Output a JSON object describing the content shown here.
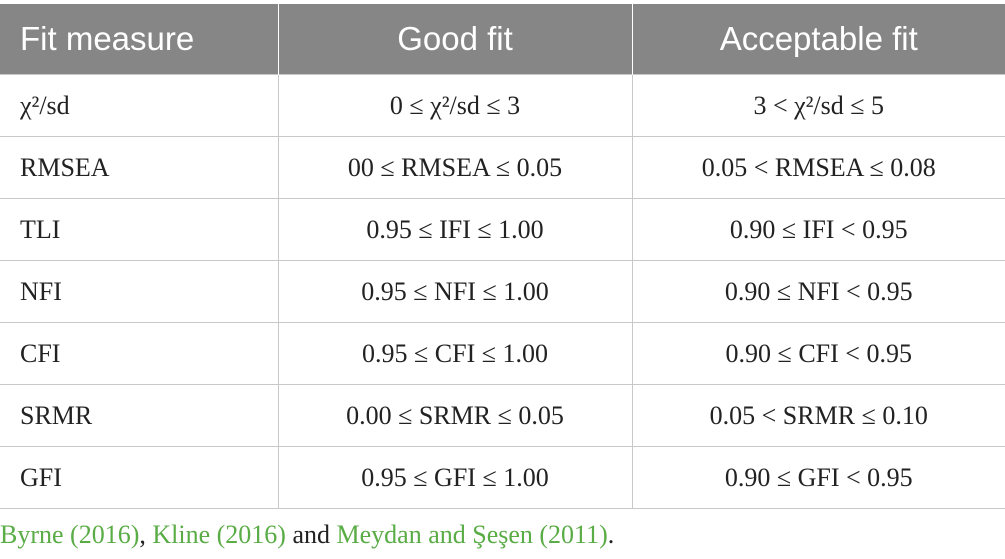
{
  "table": {
    "header": [
      "Fit measure",
      "Good fit",
      "Acceptable fit"
    ],
    "rows": [
      [
        "χ²/sd",
        "0 ≤ χ²/sd ≤ 3",
        "3 < χ²/sd ≤ 5"
      ],
      [
        "RMSEA",
        "00 ≤ RMSEA ≤ 0.05",
        "0.05 < RMSEA ≤ 0.08"
      ],
      [
        "TLI",
        "0.95 ≤ IFI ≤ 1.00",
        "0.90 ≤ IFI < 0.95"
      ],
      [
        "NFI",
        "0.95 ≤ NFI ≤ 1.00",
        "0.90 ≤ NFI < 0.95"
      ],
      [
        "CFI",
        "0.95 ≤ CFI ≤ 1.00",
        "0.90 ≤ CFI < 0.95"
      ],
      [
        "SRMR",
        "0.00 ≤ SRMR ≤ 0.05",
        "0.05 < SRMR ≤ 0.10"
      ],
      [
        "GFI",
        "0.95 ≤ GFI ≤ 1.00",
        "0.90 ≤ GFI < 0.95"
      ]
    ]
  },
  "footnote": [
    {
      "text": "Byrne (2016)",
      "link": true
    },
    {
      "text": ", ",
      "link": false
    },
    {
      "text": "Kline (2016)",
      "link": true
    },
    {
      "text": " and ",
      "link": false
    },
    {
      "text": "Meydan and Şeşen (2011)",
      "link": true
    },
    {
      "text": ".",
      "link": false
    }
  ]
}
